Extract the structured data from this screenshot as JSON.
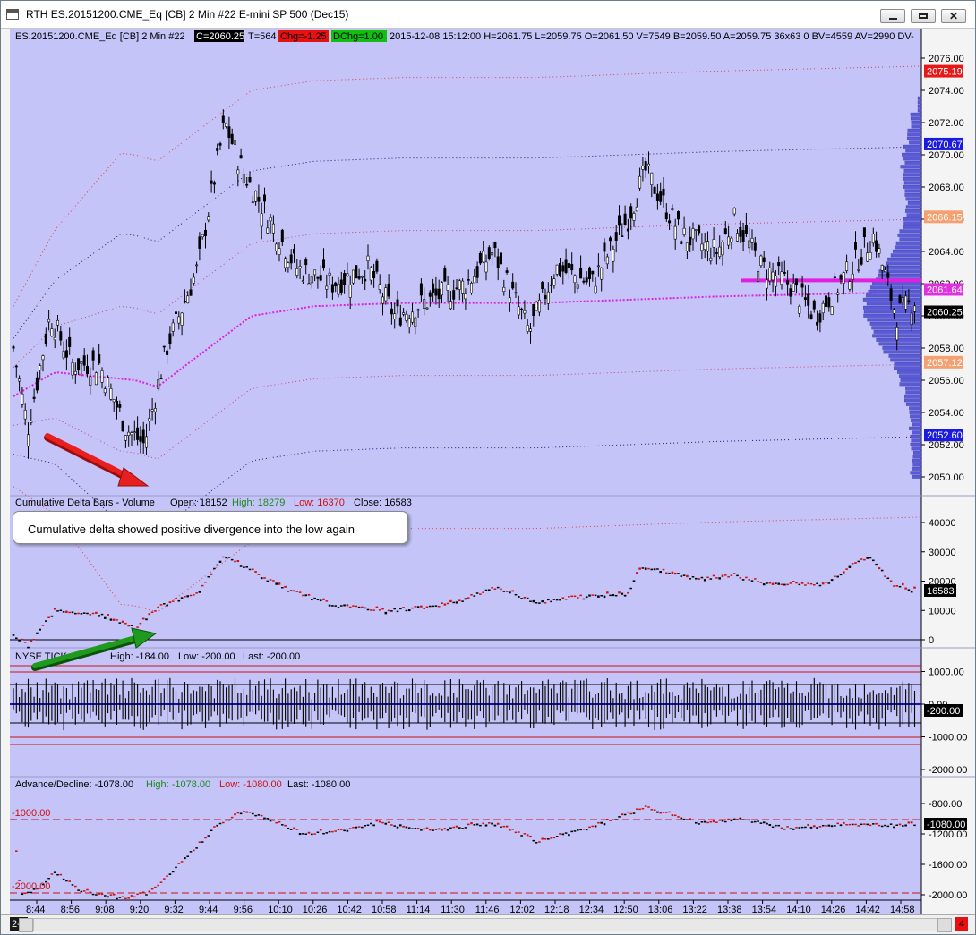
{
  "window": {
    "title": "RTH  ES.20151200.CME_Eq [CB]  2 Min  #22  E-mini SP 500 (Dec15)",
    "controls": [
      "minimize",
      "maximize",
      "close"
    ]
  },
  "header": {
    "symbol": "ES.20151200.CME_Eq [CB]  2 Min  #22",
    "close_badge": "C=2060.25",
    "tick": "T=564",
    "chg_badge": "Chg=-1.25",
    "dchg_badge": "DChg=1.00",
    "rest": "2015-12-08 15:12:00 H=2061.75 L=2059.75 O=2061.50 V=7549 B=2059.50 A=2059.75 36x63 0 BV=4559 AV=2990 DV-"
  },
  "price_panel": {
    "axis_labels": [
      "2076.00",
      "2074.00",
      "2072.00",
      "2070.00",
      "2068.00",
      "2066.00",
      "2064.00",
      "2062.00",
      "2060.00",
      "2058.00",
      "2056.00",
      "2054.00",
      "2052.00",
      "2050.00"
    ],
    "badges": [
      {
        "text": "2075.19",
        "bg": "#e81818",
        "fg": "#ffffff",
        "price": 2075.19
      },
      {
        "text": "2070.67",
        "bg": "#1a1ae0",
        "fg": "#ffffff",
        "price": 2070.67
      },
      {
        "text": "2066.15",
        "bg": "#f4a070",
        "fg": "#ffffff",
        "price": 2066.15
      },
      {
        "text": "2061.64",
        "bg": "#e030e0",
        "fg": "#ffffff",
        "price": 2061.64
      },
      {
        "text": "2060.25",
        "bg": "#000000",
        "fg": "#ffffff",
        "price": 2060.25
      },
      {
        "text": "2057.12",
        "bg": "#f4a070",
        "fg": "#ffffff",
        "price": 2057.12
      },
      {
        "text": "2052.60",
        "bg": "#1a1ae0",
        "fg": "#ffffff",
        "price": 2052.6
      }
    ]
  },
  "delta_panel": {
    "title": "Cumulative Delta Bars - Volume",
    "open": "Open: 18152",
    "high": "High: 18279",
    "low": "Low: 16370",
    "close": "Close: 16583",
    "axis_labels": [
      "40000",
      "30000",
      "20000",
      "10000",
      "0"
    ],
    "last_badge": "16583"
  },
  "annotation": {
    "text": "Cumulative delta showed positive divergence into the low again"
  },
  "tick_panel": {
    "title": "NYSE TICK:",
    "open_hidden": "...",
    "high": "High: -184.00",
    "low": "Low: -200.00",
    "last": "Last: -200.00",
    "axis_labels": [
      "1000.00",
      "0.00",
      "-1000.00",
      "-2000.00"
    ],
    "last_badge": "-200.00"
  },
  "ad_panel": {
    "title": "Advance/Decline: -1078.00",
    "high": "High: -1078.00",
    "low": "Low: -1080.00",
    "last": "Last: -1080.00",
    "axis_labels": [
      "-800.00",
      "-1200.00",
      "-1600.00",
      "-2000.00"
    ],
    "last_badge": "-1080.00",
    "ref_labels": [
      "-1000.00",
      "-2000.00"
    ]
  },
  "time_axis": [
    "8:44",
    "8:56",
    "9:08",
    "9:20",
    "9:32",
    "9:44",
    "9:56",
    "10:10",
    "10:26",
    "10:42",
    "10:58",
    "11:14",
    "11:30",
    "11:46",
    "12:02",
    "12:18",
    "12:34",
    "12:50",
    "13:06",
    "13:22",
    "13:38",
    "13:54",
    "14:10",
    "14:26",
    "14:42",
    "14:58"
  ],
  "status_bar": {
    "date_tab": "2-8",
    "badge": "4"
  },
  "colors": {
    "chart_bg": "#c4c4f8",
    "vwap": "#e020e0",
    "bands": "#e04040",
    "profile": "#5a5ad6",
    "up_bar": "#000000",
    "down_bar": "#d01010"
  }
}
